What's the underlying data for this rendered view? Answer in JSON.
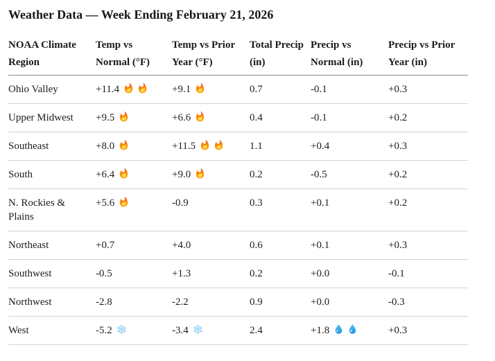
{
  "title": "Weather Data — Week Ending February 21, 2026",
  "colors": {
    "background": "#ffffff",
    "text": "#1d1d1f",
    "header_rule": "#8a8a8a",
    "row_rule": "#d2d2d2",
    "fire_orange": "#f9820b",
    "snowflake_blue": "#9bd3f6",
    "droplet_blue": "#1c93e3"
  },
  "table": {
    "columns": [
      {
        "id": "region",
        "label": "NOAA Climate Region"
      },
      {
        "id": "temp_vs_normal",
        "label": "Temp vs Normal (°F)"
      },
      {
        "id": "temp_vs_prior_year",
        "label": "Temp vs Prior Year (°F)"
      },
      {
        "id": "total_precip",
        "label": "Total Precip (in)"
      },
      {
        "id": "precip_vs_normal",
        "label": "Precip vs Normal (in)"
      },
      {
        "id": "precip_vs_prior_year",
        "label": "Precip vs Prior Year (in)"
      }
    ],
    "rows": [
      {
        "region": "Ohio Valley",
        "values": [
          {
            "text": "+11.4",
            "icons": [
              "fire",
              "fire"
            ]
          },
          {
            "text": "+9.1",
            "icons": [
              "fire"
            ]
          },
          {
            "text": "0.7",
            "icons": []
          },
          {
            "text": "-0.1",
            "icons": []
          },
          {
            "text": "+0.3",
            "icons": []
          }
        ]
      },
      {
        "region": "Upper Midwest",
        "values": [
          {
            "text": "+9.5",
            "icons": [
              "fire"
            ]
          },
          {
            "text": "+6.6",
            "icons": [
              "fire"
            ]
          },
          {
            "text": "0.4",
            "icons": []
          },
          {
            "text": "-0.1",
            "icons": []
          },
          {
            "text": "+0.2",
            "icons": []
          }
        ]
      },
      {
        "region": "Southeast",
        "values": [
          {
            "text": "+8.0",
            "icons": [
              "fire"
            ]
          },
          {
            "text": "+11.5",
            "icons": [
              "fire",
              "fire"
            ]
          },
          {
            "text": "1.1",
            "icons": []
          },
          {
            "text": "+0.4",
            "icons": []
          },
          {
            "text": "+0.3",
            "icons": []
          }
        ]
      },
      {
        "region": "South",
        "values": [
          {
            "text": "+6.4",
            "icons": [
              "fire"
            ]
          },
          {
            "text": "+9.0",
            "icons": [
              "fire"
            ]
          },
          {
            "text": "0.2",
            "icons": []
          },
          {
            "text": "-0.5",
            "icons": []
          },
          {
            "text": "+0.2",
            "icons": []
          }
        ]
      },
      {
        "region": "N. Rockies & Plains",
        "values": [
          {
            "text": "+5.6",
            "icons": [
              "fire"
            ]
          },
          {
            "text": "-0.9",
            "icons": []
          },
          {
            "text": "0.3",
            "icons": []
          },
          {
            "text": "+0.1",
            "icons": []
          },
          {
            "text": "+0.2",
            "icons": []
          }
        ]
      },
      {
        "region": "Northeast",
        "values": [
          {
            "text": "+0.7",
            "icons": []
          },
          {
            "text": "+4.0",
            "icons": []
          },
          {
            "text": "0.6",
            "icons": []
          },
          {
            "text": "+0.1",
            "icons": []
          },
          {
            "text": "+0.3",
            "icons": []
          }
        ]
      },
      {
        "region": "Southwest",
        "values": [
          {
            "text": "-0.5",
            "icons": []
          },
          {
            "text": "+1.3",
            "icons": []
          },
          {
            "text": "0.2",
            "icons": []
          },
          {
            "text": "+0.0",
            "icons": []
          },
          {
            "text": "-0.1",
            "icons": []
          }
        ]
      },
      {
        "region": "Northwest",
        "values": [
          {
            "text": "-2.8",
            "icons": []
          },
          {
            "text": "-2.2",
            "icons": []
          },
          {
            "text": "0.9",
            "icons": []
          },
          {
            "text": "+0.0",
            "icons": []
          },
          {
            "text": "-0.3",
            "icons": []
          }
        ]
      },
      {
        "region": "West",
        "values": [
          {
            "text": "-5.2",
            "icons": [
              "snowflake"
            ]
          },
          {
            "text": "-3.4",
            "icons": [
              "snowflake"
            ]
          },
          {
            "text": "2.4",
            "icons": []
          },
          {
            "text": "+1.8",
            "icons": [
              "droplet",
              "droplet"
            ]
          },
          {
            "text": "+0.3",
            "icons": []
          }
        ]
      }
    ]
  },
  "chart_data": {
    "type": "table",
    "title": "Weather Data — Week Ending February 21, 2026",
    "columns": [
      "NOAA Climate Region",
      "Temp vs Normal (°F)",
      "Temp vs Prior Year (°F)",
      "Total Precip (in)",
      "Precip vs Normal (in)",
      "Precip vs Prior Year (in)"
    ],
    "rows": [
      [
        "Ohio Valley",
        "+11.4 🔥🔥",
        "+9.1 🔥",
        "0.7",
        "-0.1",
        "+0.3"
      ],
      [
        "Upper Midwest",
        "+9.5 🔥",
        "+6.6 🔥",
        "0.4",
        "-0.1",
        "+0.2"
      ],
      [
        "Southeast",
        "+8.0 🔥",
        "+11.5 🔥🔥",
        "1.1",
        "+0.4",
        "+0.3"
      ],
      [
        "South",
        "+6.4 🔥",
        "+9.0 🔥",
        "0.2",
        "-0.5",
        "+0.2"
      ],
      [
        "N. Rockies & Plains",
        "+5.6 🔥",
        "-0.9",
        "0.3",
        "+0.1",
        "+0.2"
      ],
      [
        "Northeast",
        "+0.7",
        "+4.0",
        "0.6",
        "+0.1",
        "+0.3"
      ],
      [
        "Southwest",
        "-0.5",
        "+1.3",
        "0.2",
        "+0.0",
        "-0.1"
      ],
      [
        "Northwest",
        "-2.8",
        "-2.2",
        "0.9",
        "+0.0",
        "-0.3"
      ],
      [
        "West",
        "-5.2 ❄️",
        "-3.4 ❄️",
        "2.4",
        "+1.8 💧💧",
        "+0.3"
      ]
    ]
  }
}
